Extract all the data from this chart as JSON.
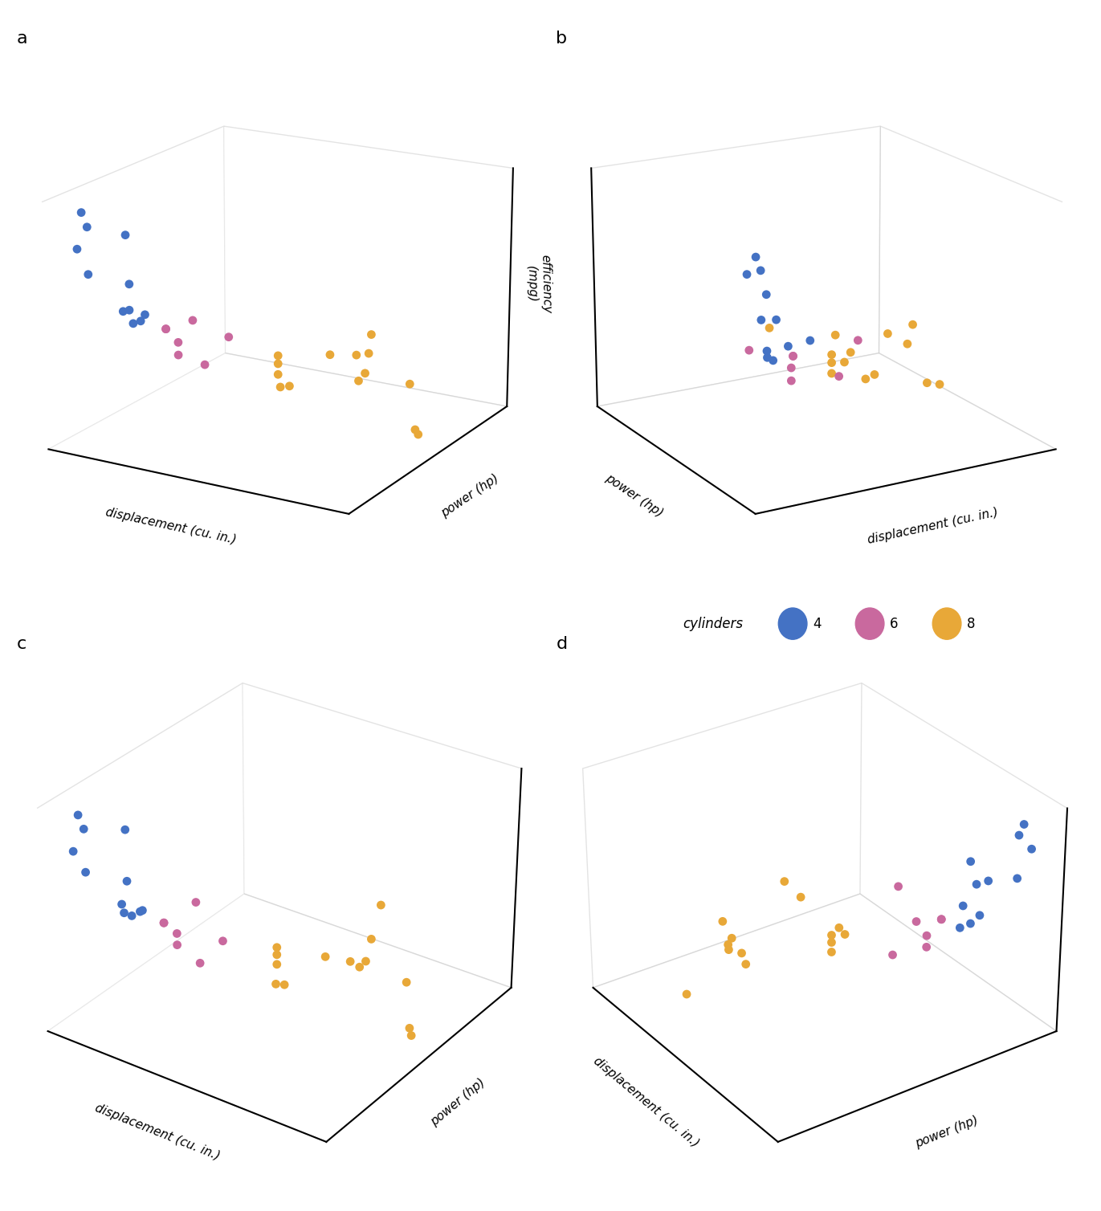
{
  "displacement": [
    160,
    160,
    108,
    258,
    360,
    225,
    360,
    146.7,
    140.8,
    167.6,
    167.6,
    275.8,
    275.8,
    275.8,
    472,
    460,
    440,
    78.7,
    75.7,
    71.1,
    120.1,
    318,
    304,
    350,
    400,
    79,
    120.3,
    95.1,
    351,
    145,
    301,
    121
  ],
  "power": [
    110,
    110,
    93,
    110,
    175,
    105,
    245,
    62,
    95,
    123,
    123,
    180,
    180,
    180,
    205,
    215,
    230,
    66,
    52,
    65,
    97,
    150,
    150,
    245,
    175,
    66,
    91,
    113,
    264,
    175,
    335,
    109
  ],
  "mpg": [
    21,
    21,
    22.8,
    21.4,
    18.7,
    18.1,
    14.3,
    24.4,
    22.8,
    19.2,
    17.8,
    16.4,
    17.3,
    15.2,
    10.4,
    10.4,
    14.7,
    32.4,
    30.4,
    33.9,
    21.5,
    15.5,
    15.2,
    13.3,
    19.2,
    27.3,
    26,
    30.4,
    15.8,
    19.7,
    15,
    21.4
  ],
  "cylinders": [
    6,
    6,
    4,
    6,
    8,
    6,
    8,
    4,
    4,
    6,
    6,
    8,
    8,
    8,
    8,
    8,
    8,
    4,
    4,
    4,
    4,
    8,
    8,
    8,
    8,
    4,
    4,
    4,
    8,
    6,
    8,
    4
  ],
  "colors_4": "#4472C4",
  "colors_6": "#C9699E",
  "colors_8": "#E8A838",
  "panel_labels": [
    "a",
    "b",
    "c",
    "d"
  ],
  "xlabel": "displacement (cu. in.)",
  "ylabel": "power (hp)",
  "zlabel": "efficiency\n(mpg)",
  "legend_title": "cylinders",
  "panel_views": [
    {
      "elev": 18,
      "azim": -60
    },
    {
      "elev": 18,
      "azim": -120
    },
    {
      "elev": 30,
      "azim": -55
    },
    {
      "elev": 30,
      "azim": 145
    }
  ],
  "figsize": [
    13.71,
    15.08
  ],
  "dpi": 100,
  "dot_size": 60,
  "grid_color": "#c8c8c8",
  "pane_color": "#ffffff",
  "axis_color": "#000000",
  "background_color": "#ffffff",
  "label_fontsize": 11,
  "panel_label_fontsize": 16
}
